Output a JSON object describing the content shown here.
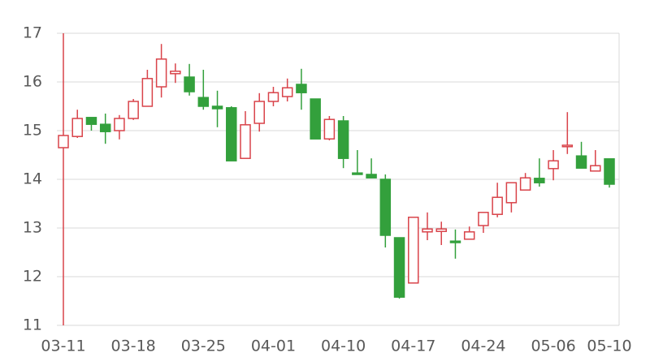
{
  "chart_data": {
    "type": "candlestick",
    "categories": [
      "03-11",
      null,
      null,
      null,
      null,
      "03-18",
      null,
      null,
      null,
      null,
      "03-25",
      null,
      null,
      null,
      null,
      "04-01",
      null,
      null,
      null,
      null,
      "04-10",
      null,
      null,
      null,
      null,
      "04-17",
      null,
      null,
      null,
      null,
      "04-24",
      null,
      null,
      null,
      null,
      "05-06",
      null,
      null,
      null,
      "05-10"
    ],
    "open": [
      14.65,
      14.88,
      15.27,
      15.13,
      15.0,
      15.25,
      15.5,
      15.9,
      16.17,
      16.1,
      15.68,
      15.5,
      15.47,
      14.43,
      15.15,
      15.6,
      15.7,
      15.95,
      15.65,
      14.83,
      15.2,
      14.13,
      14.1,
      14.0,
      12.8,
      11.87,
      12.92,
      12.93,
      12.73,
      12.77,
      13.05,
      13.28,
      13.52,
      13.78,
      14.02,
      14.22,
      14.67,
      14.48,
      14.17,
      14.42
    ],
    "high": [
      17.0,
      15.43,
      15.27,
      15.35,
      15.32,
      15.65,
      16.25,
      16.78,
      16.38,
      16.37,
      16.25,
      15.82,
      15.5,
      15.4,
      15.77,
      15.9,
      16.07,
      16.27,
      15.65,
      15.3,
      15.3,
      14.6,
      14.43,
      14.1,
      12.8,
      13.22,
      13.32,
      13.13,
      12.97,
      13.03,
      13.32,
      13.93,
      13.93,
      14.13,
      14.43,
      14.6,
      15.38,
      14.77,
      14.6,
      14.42
    ],
    "low": [
      11.0,
      14.85,
      15.0,
      14.73,
      14.82,
      15.22,
      15.5,
      15.68,
      15.98,
      15.72,
      15.43,
      15.07,
      14.38,
      14.43,
      14.98,
      15.5,
      15.6,
      15.43,
      14.83,
      14.8,
      14.23,
      14.1,
      14.03,
      12.6,
      11.55,
      11.87,
      12.75,
      12.65,
      12.37,
      12.77,
      12.9,
      13.22,
      13.32,
      13.78,
      13.85,
      13.98,
      14.52,
      14.23,
      14.17,
      13.83
    ],
    "close": [
      14.9,
      15.25,
      15.13,
      14.98,
      15.25,
      15.6,
      16.07,
      16.47,
      16.22,
      15.8,
      15.5,
      15.45,
      14.38,
      15.12,
      15.6,
      15.78,
      15.88,
      15.78,
      14.83,
      15.23,
      14.43,
      14.1,
      14.03,
      12.85,
      11.58,
      13.22,
      12.98,
      12.98,
      12.7,
      12.92,
      13.32,
      13.63,
      13.93,
      14.03,
      13.93,
      14.38,
      14.7,
      14.23,
      14.28,
      13.9
    ],
    "up_color": "#d9434a",
    "down_color": "#33a03c",
    "ylim": [
      11,
      17
    ],
    "yticks": [
      11,
      12,
      13,
      14,
      15,
      16,
      17
    ],
    "grid": true
  }
}
